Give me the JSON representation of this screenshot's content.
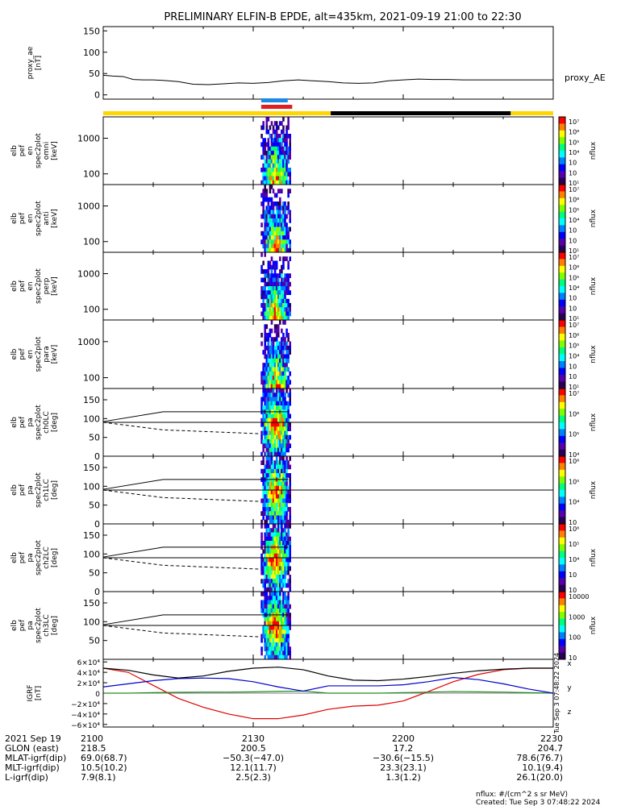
{
  "title": "PRELIMINARY ELFIN-B EPDE, alt=435km, 2021-09-19 21:00 to 22:30",
  "colors": {
    "background": "#ffffff",
    "status_yellow": "#ffd700",
    "status_black": "#000000",
    "status_blue": "#1e88e5",
    "status_red": "#e02020",
    "bx": "#e00000",
    "by": "#228b22",
    "bz": "#0000cc",
    "bmag": "#000000"
  },
  "chart_data": [
    {
      "type": "line",
      "panel": "proxy_ae",
      "ylabel_lines": [
        "proxy_ae",
        "[nT]"
      ],
      "ylim": [
        -10,
        160
      ],
      "yticks": [
        "150",
        "100",
        "50",
        "0"
      ],
      "series_label": "proxy_AE",
      "x_minutes": [
        0,
        2,
        4,
        6,
        8,
        10,
        12,
        15,
        18,
        21,
        24,
        27,
        30,
        33,
        36,
        39,
        42,
        45,
        48,
        51,
        54,
        57,
        60,
        63,
        66,
        69,
        72,
        75,
        78,
        81,
        84,
        87,
        90
      ],
      "values": [
        46,
        44,
        43,
        36,
        35,
        35,
        34,
        31,
        25,
        24,
        26,
        28,
        27,
        29,
        33,
        35,
        33,
        31,
        28,
        27,
        28,
        33,
        35,
        37,
        36,
        36,
        35,
        35,
        35,
        35,
        35,
        35,
        35
      ]
    },
    {
      "type": "status_bar",
      "panel": "orbit_status",
      "segments": [
        {
          "start_min": 0,
          "end_min": 45.5,
          "color": "yellow"
        },
        {
          "start_min": 45.5,
          "end_min": 81.5,
          "color": "black"
        },
        {
          "start_min": 81.5,
          "end_min": 90,
          "color": "yellow"
        }
      ],
      "markers": [
        {
          "start_min": 31.6,
          "end_min": 36.9,
          "color": "blue",
          "row": "upper"
        },
        {
          "start_min": 31.6,
          "end_min": 37.8,
          "color": "red",
          "row": "lower"
        }
      ]
    },
    {
      "type": "heatmap",
      "panel": "omni",
      "ylabel_lines": [
        "elb",
        "pef",
        "en",
        "spec2plot",
        "omni",
        "[keV]"
      ],
      "scale": "log",
      "yticks": [
        "1000",
        "100"
      ],
      "colorbar_label": "nflux",
      "colorbar_ticks": [
        "10⁷",
        "10⁶",
        "10⁵",
        "10⁴",
        "10⁳",
        "10⁲",
        "10¹"
      ],
      "time_range_min": [
        31.5,
        37.5
      ]
    },
    {
      "type": "heatmap",
      "panel": "anti",
      "ylabel_lines": [
        "elb",
        "pef",
        "en",
        "spec2plot",
        "anti",
        "[keV]"
      ],
      "scale": "log",
      "yticks": [
        "1000",
        "100"
      ],
      "colorbar_label": "nflux",
      "colorbar_ticks": [
        "10⁷",
        "10⁶",
        "10⁵",
        "10⁴",
        "10⁳",
        "10⁲",
        "10¹"
      ],
      "time_range_min": [
        31.5,
        37.5
      ]
    },
    {
      "type": "heatmap",
      "panel": "perp",
      "ylabel_lines": [
        "elb",
        "pef",
        "en",
        "spec2plot",
        "perp",
        "[keV]"
      ],
      "scale": "log",
      "yticks": [
        "1000",
        "100"
      ],
      "colorbar_label": "nflux",
      "colorbar_ticks": [
        "10⁷",
        "10⁶",
        "10⁵",
        "10⁴",
        "10⁳",
        "10⁲",
        "10¹"
      ],
      "time_range_min": [
        31.5,
        37.5
      ]
    },
    {
      "type": "heatmap",
      "panel": "para",
      "ylabel_lines": [
        "elb",
        "pef",
        "en",
        "spec2plot",
        "para",
        "[keV]"
      ],
      "scale": "log",
      "yticks": [
        "1000",
        "100"
      ],
      "colorbar_label": "nflux",
      "colorbar_ticks": [
        "10⁷",
        "10⁶",
        "10⁵",
        "10⁴",
        "10⁳",
        "10⁲",
        "10¹"
      ],
      "time_range_min": [
        31.5,
        37.5
      ]
    },
    {
      "type": "heatmap",
      "panel": "ch0LC",
      "ylabel_lines": [
        "elb",
        "pef",
        "pa",
        "spec2plot",
        "ch0LC",
        "[deg]"
      ],
      "ylim": [
        0,
        180
      ],
      "yticks": [
        "150",
        "100",
        "50",
        "0"
      ],
      "colorbar_label": "nflux",
      "colorbar_ticks": [
        "10⁷",
        "10⁶",
        "10⁵",
        "10⁴"
      ],
      "time_range_min": [
        31.5,
        37.5
      ]
    },
    {
      "type": "heatmap",
      "panel": "ch1LC",
      "ylabel_lines": [
        "elb",
        "pef",
        "pa",
        "spec2plot",
        "ch1LC",
        "[deg]"
      ],
      "ylim": [
        0,
        180
      ],
      "yticks": [
        "150",
        "100",
        "50",
        "0"
      ],
      "colorbar_label": "nflux",
      "colorbar_ticks": [
        "10⁶",
        "10⁵",
        "10⁴",
        "10⁳"
      ],
      "time_range_min": [
        31.5,
        37.5
      ]
    },
    {
      "type": "heatmap",
      "panel": "ch2LC",
      "ylabel_lines": [
        "elb",
        "pef",
        "pa",
        "spec2plot",
        "ch2LC",
        "[deg]"
      ],
      "ylim": [
        0,
        180
      ],
      "yticks": [
        "150",
        "100",
        "50",
        "0"
      ],
      "colorbar_label": "nflux",
      "colorbar_ticks": [
        "10⁶",
        "10⁵",
        "10⁴",
        "10⁳",
        "10⁲"
      ],
      "time_range_min": [
        31.5,
        37.5
      ]
    },
    {
      "type": "heatmap",
      "panel": "ch3LC",
      "ylabel_lines": [
        "elb",
        "pef",
        "pa",
        "spec2plot",
        "ch3LC",
        "[deg]"
      ],
      "ylim": [
        0,
        180
      ],
      "yticks": [
        "150",
        "100",
        "50"
      ],
      "colorbar_label": "nflux",
      "colorbar_ticks": [
        "10000",
        "1000",
        "100",
        "10"
      ],
      "time_range_min": [
        31.5,
        37.5
      ]
    },
    {
      "type": "line",
      "panel": "bfield",
      "ylabel_lines": [
        "IGRF",
        "[nT]"
      ],
      "ylim": [
        -65000,
        65000
      ],
      "yticks": [
        "6×10⁴",
        "4×10⁴",
        "2×10⁴",
        "0",
        "−2×10⁴",
        "−4×10⁴",
        "−6×10⁴"
      ],
      "x_minutes": [
        0,
        5,
        10,
        15,
        20,
        25,
        30,
        35,
        40,
        45,
        50,
        55,
        60,
        65,
        70,
        75,
        80,
        85,
        90
      ],
      "series": [
        {
          "name": "x",
          "color_key": "bx",
          "values": [
            48000,
            40000,
            15000,
            -10000,
            -27000,
            -40000,
            -49000,
            -49000,
            -42000,
            -31000,
            -25000,
            -23000,
            -15000,
            3000,
            22000,
            36000,
            45000,
            48000,
            48000
          ]
        },
        {
          "name": "y",
          "color_key": "by",
          "values": [
            0,
            0,
            1000,
            1500,
            2000,
            2000,
            2500,
            3500,
            4000,
            0,
            0,
            0,
            1000,
            2000,
            3000,
            2500,
            2000,
            1000,
            0
          ]
        },
        {
          "name": "z",
          "color_key": "bz",
          "values": [
            12000,
            18000,
            24000,
            28000,
            29000,
            28000,
            22000,
            12000,
            4000,
            14000,
            14000,
            14000,
            16000,
            22000,
            30000,
            26000,
            18000,
            8000,
            0
          ]
        },
        {
          "name": "mag",
          "color_key": "bmag",
          "values": [
            48000,
            44000,
            35000,
            29000,
            33000,
            42000,
            48000,
            50000,
            45000,
            33000,
            25000,
            24000,
            27000,
            32000,
            38000,
            43000,
            46000,
            48000,
            48000
          ]
        }
      ],
      "side_labels": [
        "x",
        "y",
        "z"
      ],
      "timestamp": "Tue Sep  3 07:48:22 2024"
    }
  ],
  "xaxis": {
    "tick_labels": [
      "2100",
      "2130",
      "2200",
      "2230"
    ],
    "tick_minutes": [
      0,
      30,
      60,
      90
    ],
    "rows": [
      {
        "label": "2021 Sep 19",
        "values": [
          "2100",
          "2130",
          "2200",
          "2230"
        ]
      },
      {
        "label": "GLON (east)",
        "values": [
          "218.5",
          "200.5",
          "17.2",
          "204.7"
        ]
      },
      {
        "label": "MLAT-igrf(dip)",
        "values": [
          "69.0(68.7)",
          "−50.3(−47.0)",
          "−30.6(−15.5)",
          "78.6(76.7)"
        ]
      },
      {
        "label": "MLT-igrf(dip)",
        "values": [
          "10.5(10.2)",
          "12.1(11.7)",
          "23.3(23.1)",
          "10.1(9.4)"
        ]
      },
      {
        "label": "L-igrf(dip)",
        "values": [
          "7.9(8.1)",
          "2.5(2.3)",
          "1.3(1.2)",
          "26.1(20.0)"
        ]
      }
    ]
  },
  "footer": {
    "units": "nflux: #/(cm^2 s sr MeV)",
    "created": "Created: Tue Sep  3 07:48:22 2024"
  }
}
